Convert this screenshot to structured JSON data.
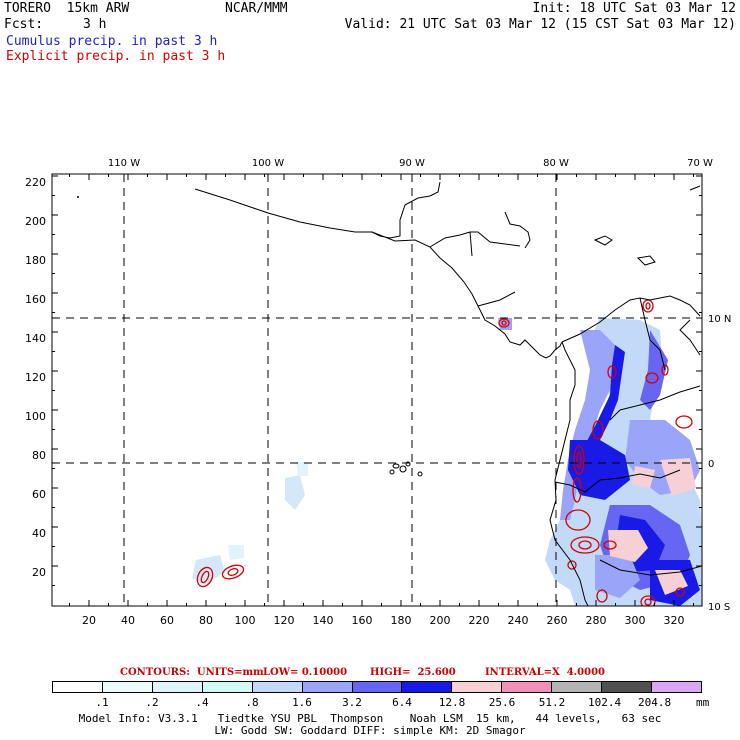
{
  "header": {
    "model": "TORERO  15km ARW",
    "org": "NCAR/MMM",
    "init": "Init: 18 UTC Sat 03 Mar 12",
    "fcst_label": "Fcst:",
    "fcst_value": "3 h",
    "valid": "Valid: 21 UTC Sat 03 Mar 12 (15 CST Sat 03 Mar 12)",
    "field1": "Cumulus precip. in past 3 h",
    "field2": "Explicit precip. in past 3 h"
  },
  "colors": {
    "field1": "#1f1fcc",
    "field2": "#d60000"
  },
  "map": {
    "lon_labels": [
      "110 W",
      "100 W",
      "90 W",
      "80 W",
      "70 W"
    ],
    "lat_labels": [
      "10 N",
      "0",
      "10 S"
    ],
    "y_ticks": [
      "220",
      "200",
      "180",
      "160",
      "140",
      "120",
      "100",
      "80",
      "60",
      "40",
      "20"
    ],
    "x_ticks": [
      "20",
      "40",
      "60",
      "80",
      "100",
      "120",
      "140",
      "160",
      "180",
      "200",
      "220",
      "240",
      "260",
      "280",
      "300",
      "320"
    ]
  },
  "contours": {
    "units": "CONTOURS:  UNITS=mm",
    "low": "LOW= 0.10000",
    "high": "HIGH=  25.600",
    "interval": "INTERVAL=X  4.0000"
  },
  "legend": {
    "colors": [
      "#ffffff",
      "#ecfbfb",
      "#e0f4fc",
      "#d4faf8",
      "#c2daf8",
      "#9aa4f8",
      "#6666f2",
      "#1a1ae6",
      "#f6d0d4",
      "#f090b8",
      "#b4b4b4",
      "#505050",
      "#d8a8f4"
    ],
    "labels": [
      ".1",
      ".2",
      ".4",
      ".8",
      "1.6",
      "3.2",
      "6.4",
      "12.8",
      "25.6",
      "51.2",
      "102.4",
      "204.8"
    ],
    "unit": "mm"
  },
  "footer": {
    "line1": "Model Info: V3.3.1   Tiedtke YSU PBL  Thompson    Noah LSM  15 km,   44 levels,   63 sec",
    "line2": "LW: Godd SW: Goddard DIFF: simple KM: 2D Smagor"
  }
}
